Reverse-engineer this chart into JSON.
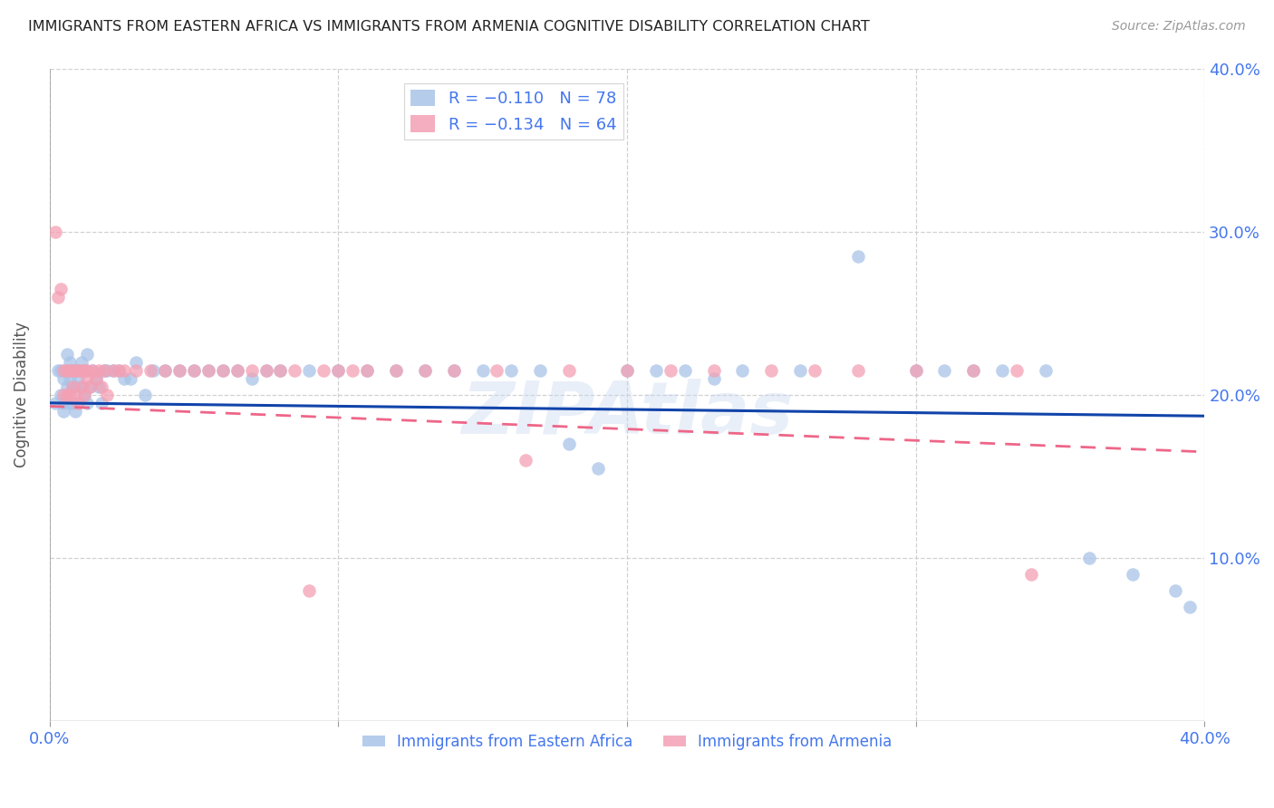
{
  "title": "IMMIGRANTS FROM EASTERN AFRICA VS IMMIGRANTS FROM ARMENIA COGNITIVE DISABILITY CORRELATION CHART",
  "source": "Source: ZipAtlas.com",
  "ylabel": "Cognitive Disability",
  "xlim": [
    0.0,
    0.4
  ],
  "ylim": [
    0.0,
    0.4
  ],
  "x_ticks": [
    0.0,
    0.1,
    0.2,
    0.3,
    0.4
  ],
  "y_ticks": [
    0.0,
    0.1,
    0.2,
    0.3,
    0.4
  ],
  "x_tick_labels": [
    "0.0%",
    "",
    "",
    "",
    "40.0%"
  ],
  "y_tick_labels_left": [
    "",
    "",
    "",
    "",
    ""
  ],
  "y_tick_labels_right": [
    "",
    "10.0%",
    "20.0%",
    "30.0%",
    "40.0%"
  ],
  "color_blue": "#A8C4E8",
  "color_pink": "#F4A0B4",
  "color_blue_line": "#1144AA",
  "color_pink_line": "#EE6688",
  "axis_label_color": "#4477EE",
  "watermark": "ZIPAtlas",
  "grid_color": "#CCCCCC",
  "background_color": "#FFFFFF",
  "series1_x": [
    0.002,
    0.003,
    0.004,
    0.004,
    0.005,
    0.005,
    0.005,
    0.006,
    0.006,
    0.006,
    0.007,
    0.007,
    0.007,
    0.008,
    0.008,
    0.008,
    0.009,
    0.009,
    0.009,
    0.01,
    0.01,
    0.01,
    0.011,
    0.011,
    0.012,
    0.012,
    0.013,
    0.013,
    0.014,
    0.015,
    0.016,
    0.017,
    0.018,
    0.019,
    0.02,
    0.022,
    0.024,
    0.026,
    0.028,
    0.03,
    0.033,
    0.036,
    0.04,
    0.045,
    0.05,
    0.055,
    0.06,
    0.065,
    0.07,
    0.075,
    0.08,
    0.09,
    0.1,
    0.11,
    0.12,
    0.13,
    0.14,
    0.15,
    0.16,
    0.17,
    0.18,
    0.19,
    0.2,
    0.21,
    0.22,
    0.23,
    0.24,
    0.26,
    0.28,
    0.3,
    0.31,
    0.32,
    0.33,
    0.345,
    0.36,
    0.375,
    0.39,
    0.395
  ],
  "series1_y": [
    0.195,
    0.215,
    0.2,
    0.215,
    0.19,
    0.21,
    0.195,
    0.225,
    0.215,
    0.205,
    0.21,
    0.22,
    0.195,
    0.215,
    0.205,
    0.195,
    0.215,
    0.205,
    0.19,
    0.215,
    0.21,
    0.195,
    0.22,
    0.205,
    0.215,
    0.2,
    0.225,
    0.195,
    0.205,
    0.215,
    0.21,
    0.205,
    0.195,
    0.215,
    0.215,
    0.215,
    0.215,
    0.21,
    0.21,
    0.22,
    0.2,
    0.215,
    0.215,
    0.215,
    0.215,
    0.215,
    0.215,
    0.215,
    0.21,
    0.215,
    0.215,
    0.215,
    0.215,
    0.215,
    0.215,
    0.215,
    0.215,
    0.215,
    0.215,
    0.215,
    0.17,
    0.155,
    0.215,
    0.215,
    0.215,
    0.21,
    0.215,
    0.215,
    0.285,
    0.215,
    0.215,
    0.215,
    0.215,
    0.215,
    0.1,
    0.09,
    0.08,
    0.07
  ],
  "series2_x": [
    0.002,
    0.003,
    0.004,
    0.005,
    0.005,
    0.006,
    0.006,
    0.007,
    0.007,
    0.008,
    0.008,
    0.009,
    0.009,
    0.01,
    0.01,
    0.011,
    0.011,
    0.012,
    0.012,
    0.013,
    0.013,
    0.014,
    0.015,
    0.016,
    0.017,
    0.018,
    0.019,
    0.02,
    0.022,
    0.024,
    0.026,
    0.03,
    0.035,
    0.04,
    0.045,
    0.05,
    0.055,
    0.06,
    0.065,
    0.07,
    0.08,
    0.09,
    0.1,
    0.11,
    0.12,
    0.13,
    0.14,
    0.155,
    0.165,
    0.18,
    0.2,
    0.215,
    0.23,
    0.25,
    0.265,
    0.28,
    0.3,
    0.32,
    0.335,
    0.34,
    0.075,
    0.085,
    0.095,
    0.105
  ],
  "series2_y": [
    0.3,
    0.26,
    0.265,
    0.215,
    0.2,
    0.215,
    0.2,
    0.215,
    0.2,
    0.215,
    0.205,
    0.2,
    0.215,
    0.195,
    0.215,
    0.215,
    0.205,
    0.215,
    0.2,
    0.21,
    0.215,
    0.205,
    0.215,
    0.21,
    0.215,
    0.205,
    0.215,
    0.2,
    0.215,
    0.215,
    0.215,
    0.215,
    0.215,
    0.215,
    0.215,
    0.215,
    0.215,
    0.215,
    0.215,
    0.215,
    0.215,
    0.08,
    0.215,
    0.215,
    0.215,
    0.215,
    0.215,
    0.215,
    0.16,
    0.215,
    0.215,
    0.215,
    0.215,
    0.215,
    0.215,
    0.215,
    0.215,
    0.215,
    0.215,
    0.09,
    0.215,
    0.215,
    0.215,
    0.215
  ]
}
